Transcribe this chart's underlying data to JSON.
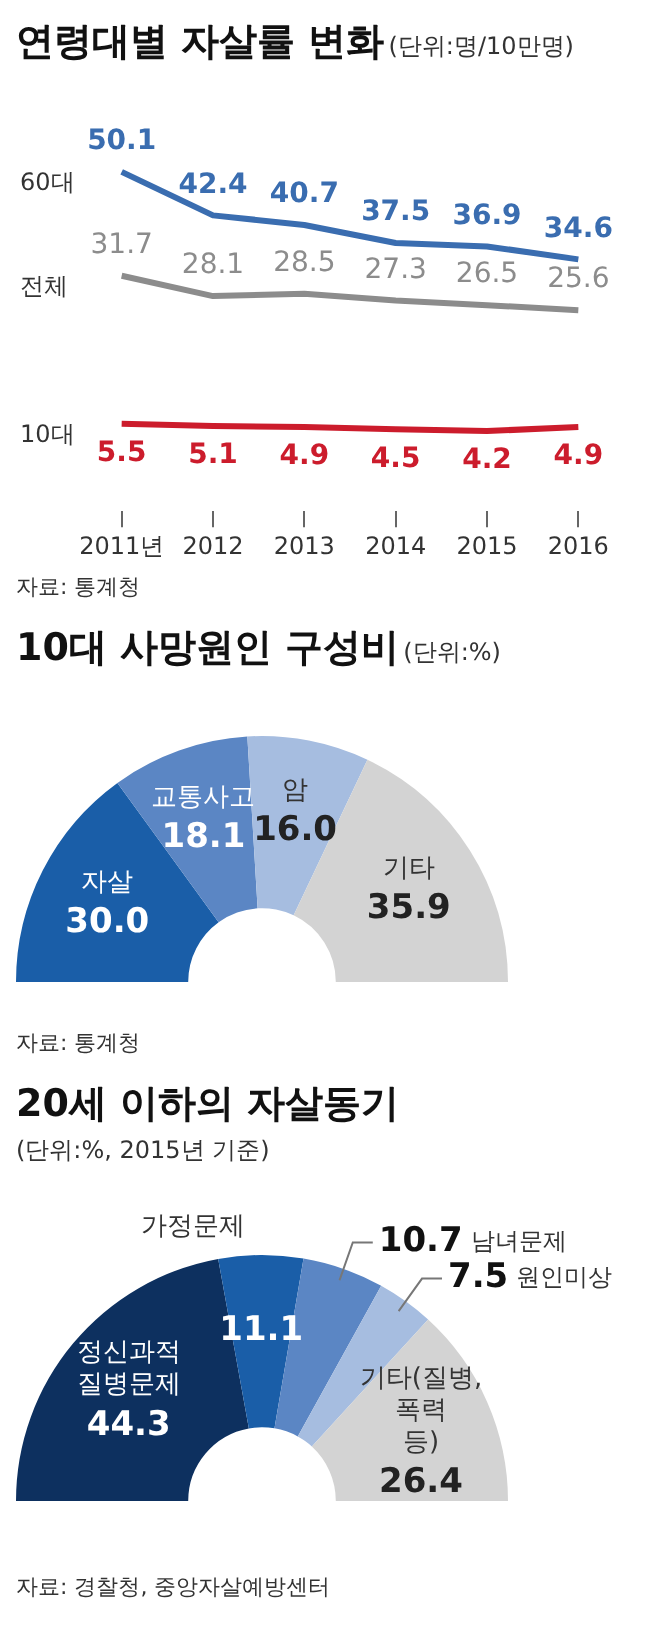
{
  "chart_data": [
    {
      "type": "line",
      "title": "연령대별 자살률 변화",
      "subtitle": "(단위:명/10만명)",
      "categories": [
        "2011년",
        "2012",
        "2013",
        "2014",
        "2015",
        "2016"
      ],
      "series": [
        {
          "name": "60대",
          "color": "#3a6db0",
          "values": [
            50.1,
            42.4,
            40.7,
            37.5,
            36.9,
            34.6
          ]
        },
        {
          "name": "전체",
          "color": "#8c8c8c",
          "values": [
            31.7,
            28.1,
            28.5,
            27.3,
            26.5,
            25.6
          ]
        },
        {
          "name": "10대",
          "color": "#cc1c2c",
          "values": [
            5.5,
            5.1,
            4.9,
            4.5,
            4.2,
            4.9
          ]
        }
      ],
      "data_labels": true,
      "legend": false,
      "grid": false,
      "marker": "none",
      "line_style": "solid",
      "annotations": [
        "자료: 통계청"
      ]
    },
    {
      "type": "donut",
      "title": "10대 사망원인 구성비",
      "subtitle": "(단위:%)",
      "categories": [
        "자살",
        "교통사고",
        "암",
        "기타"
      ],
      "values": [
        30.0,
        18.1,
        16.0,
        35.9
      ],
      "colors": [
        "#1a5ea8",
        "#5b86c4",
        "#a6bde0",
        "#d3d3d3"
      ],
      "value_labels": [
        "30.0",
        "18.1",
        "16.0",
        "35.9"
      ],
      "legend": false,
      "annotations": [
        "자료: 통계청"
      ]
    },
    {
      "type": "donut",
      "title": "20세 이하의 자살동기",
      "subtitle": "(단위:%, 2015년 기준)",
      "categories": [
        "정신과적 질병문제",
        "가정문제",
        "남녀문제",
        "원인미상",
        "기타(질병, 폭력 등)"
      ],
      "values": [
        44.3,
        11.1,
        10.7,
        7.5,
        26.4
      ],
      "colors": [
        "#0d305f",
        "#1a5ea8",
        "#5b86c4",
        "#a6bde0",
        "#d3d3d3"
      ],
      "value_labels": [
        "44.3",
        "11.1",
        "10.7",
        "7.5",
        "26.4"
      ],
      "legend": false,
      "annotations": [
        "자료: 경찰청, 중앙자살예방센터"
      ]
    }
  ]
}
